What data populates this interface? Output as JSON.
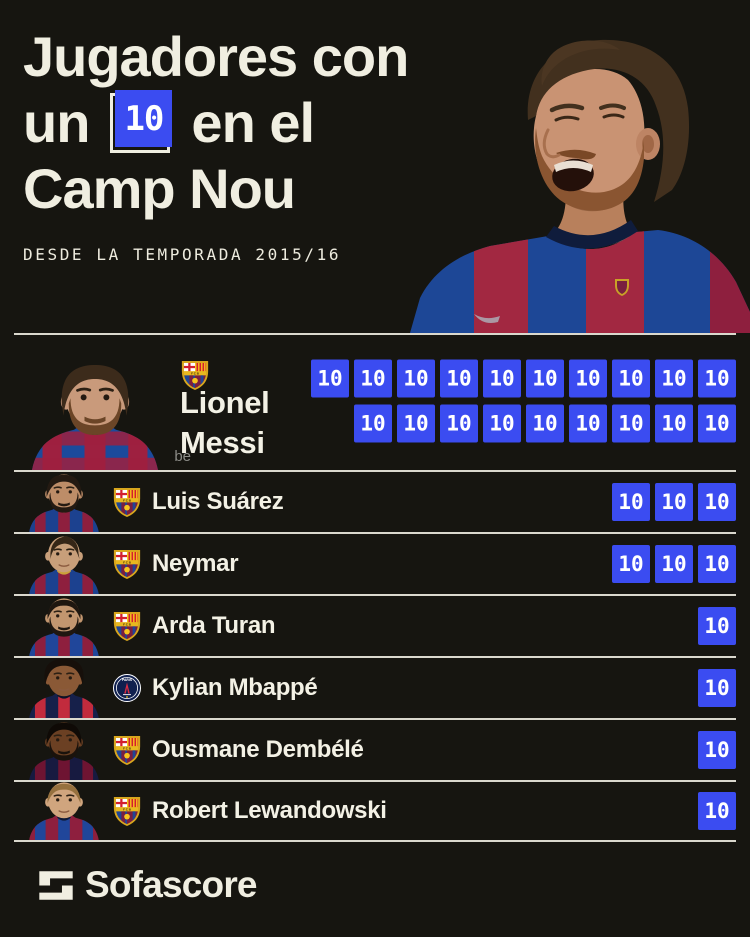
{
  "header": {
    "title_line1": "Jugadores con",
    "title_line2_before": "un",
    "title_badge": "10",
    "title_line2_after": "en el",
    "title_line3": "Camp Nou",
    "subtitle": "DESDE LA TEMPORADA 2015/16"
  },
  "colors": {
    "background": "#161510",
    "text_cream": "#F0EEE1",
    "accent_blue": "#3B4CF1",
    "divider": "#DAD8CD",
    "badge_text": "#FFFFFF"
  },
  "table": {
    "badge_label": "10",
    "players": [
      {
        "name_lines": [
          "Lionel",
          "Messi"
        ],
        "team_crest": "barcelona",
        "badge_rows": [
          10,
          9
        ],
        "featured": true,
        "avatar_watermark": "be",
        "avatar": {
          "skin": "#c99a7b",
          "hair": "#3c2b1b",
          "beard": "#6b4527",
          "hair_style": "long",
          "shirt": [
            "#1b4a9c",
            "#9e2040"
          ],
          "collar": "#0d1834",
          "checker": true
        }
      },
      {
        "name_lines": [
          "Luis Suárez"
        ],
        "team_crest": "barcelona",
        "badge_rows": [
          3
        ],
        "featured": false,
        "avatar": {
          "skin": "#bd8d68",
          "hair": "#241a12",
          "beard": "#241a12",
          "hair_style": "short",
          "shirt": [
            "#1c418f",
            "#8e1f3e"
          ],
          "collar": "#caa23a",
          "checker": false
        }
      },
      {
        "name_lines": [
          "Neymar"
        ],
        "team_crest": "barcelona",
        "badge_rows": [
          3
        ],
        "featured": false,
        "avatar": {
          "skin": "#c89f7a",
          "hair": "#352617",
          "beard": null,
          "hair_style": "mohawk",
          "shirt": [
            "#1c418f",
            "#8e1f3e"
          ],
          "collar": "#caa23a",
          "checker": false
        }
      },
      {
        "name_lines": [
          "Arda Turan"
        ],
        "team_crest": "barcelona",
        "badge_rows": [
          1
        ],
        "featured": false,
        "avatar": {
          "skin": "#c2966f",
          "hair": "#1f1710",
          "beard": "#1f1710",
          "hair_style": "crop",
          "shirt": [
            "#20469a",
            "#8e1f3e"
          ],
          "collar": "#0d1834",
          "checker": false
        }
      },
      {
        "name_lines": [
          "Kylian Mbappé"
        ],
        "team_crest": "psg",
        "badge_rows": [
          1
        ],
        "featured": false,
        "avatar": {
          "skin": "#8a5936",
          "hair": "#160f0a",
          "beard": null,
          "hair_style": "afro",
          "shirt": [
            "#16204a",
            "#c22b3d"
          ],
          "collar": "#0d1226",
          "checker": false
        }
      },
      {
        "name_lines": [
          "Ousmane Dembélé"
        ],
        "team_crest": "barcelona",
        "badge_rows": [
          1
        ],
        "featured": false,
        "avatar": {
          "skin": "#6b4023",
          "hair": "#0f0a06",
          "beard": "#1a120c",
          "hair_style": "short",
          "shirt": [
            "#171a40",
            "#6e1432"
          ],
          "collar": "#0d1020",
          "checker": false
        }
      },
      {
        "name_lines": [
          "Robert Lewandowski"
        ],
        "team_crest": "barcelona",
        "badge_rows": [
          1
        ],
        "featured": false,
        "avatar": {
          "skin": "#d0a57e",
          "hair": "#96713f",
          "beard": null,
          "hair_style": "crop",
          "shirt": [
            "#8e1f3e",
            "#20469a"
          ],
          "collar": "#0d1834",
          "checker": false
        }
      }
    ]
  },
  "footer": {
    "brand": "Sofascore"
  },
  "chart_data": {
    "type": "table",
    "title": "Jugadores con un 10 en el Camp Nou",
    "subtitle": "DESDE LA TEMPORADA 2015/16",
    "categories": [
      "Lionel Messi",
      "Luis Suárez",
      "Neymar",
      "Arda Turan",
      "Kylian Mbappé",
      "Ousmane Dembélé",
      "Robert Lewandowski"
    ],
    "values": [
      19,
      3,
      3,
      1,
      1,
      1,
      1
    ],
    "value_label": "10",
    "team_crests": [
      "barcelona",
      "barcelona",
      "barcelona",
      "barcelona",
      "psg",
      "barcelona",
      "barcelona"
    ],
    "legend_position": "none",
    "grid": false
  }
}
